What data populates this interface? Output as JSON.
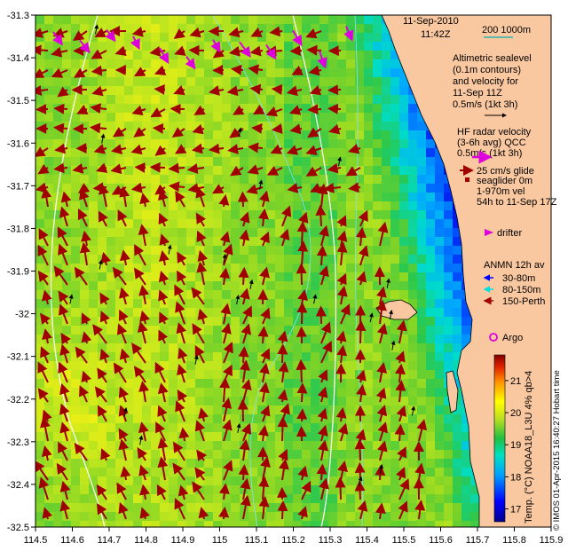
{
  "map": {
    "date": "11-Sep-2010",
    "time": "11:42Z",
    "scale_label": "200  1000m",
    "x_ticks": [
      "114.5",
      "114.6",
      "114.7",
      "114.8",
      "114.9",
      "115",
      "115.1",
      "115.2",
      "115.3",
      "115.4",
      "115.5",
      "115.6",
      "115.7",
      "115.8",
      "115.9"
    ],
    "y_ticks": [
      "-31.3",
      "-31.4",
      "-31.5",
      "-31.6",
      "-31.7",
      "-31.8",
      "-31.9",
      "-32",
      "-32.1",
      "-32.2",
      "-32.3",
      "-32.4",
      "-32.5"
    ],
    "xlim": [
      114.5,
      115.9
    ],
    "ylim": [
      -32.5,
      -31.3
    ],
    "altimetric": {
      "line1": "Altimetric sealevel",
      "line2": "(0.1m contours)",
      "line3": "and velocity for",
      "line4": "11-Sep 11Z",
      "line5": "0.5m/s (1kt 3h)"
    },
    "hf_radar": {
      "line1": "HF radar velocity",
      "line2": "(3-6h avg) QCC",
      "line3": "0.5m/s (1kt 3h)"
    },
    "glider": {
      "line1": "25 cm/s glide",
      "line2": "seaglider 0m",
      "line3": "1-970m vel",
      "line4": "54h to 11-Sep 17Z"
    },
    "drifter": "drifter",
    "anmn": {
      "title": "ANMN 12h av",
      "item1": "30-80m",
      "item2": "80-150m",
      "item3": "150-Perth"
    },
    "argo": "Argo",
    "colorbar": {
      "ticks": [
        "21",
        "20",
        "19",
        "18",
        "17"
      ],
      "range": [
        16.6,
        21.8
      ],
      "label": "Temp. (°C) NOAA18_L3U 4% qb>4"
    },
    "credit": "© IMOS 01-Apr-2015 16:40:27 Hobart time",
    "colors": {
      "land": "#fac8a0",
      "ocean_deep_blue": "#0000c8",
      "radar_arrow": "#a00000",
      "hf_arrow": "#dd00dd",
      "anmn1": "#0000ff",
      "anmn2": "#00e0e0",
      "anmn3": "#a00000"
    }
  }
}
